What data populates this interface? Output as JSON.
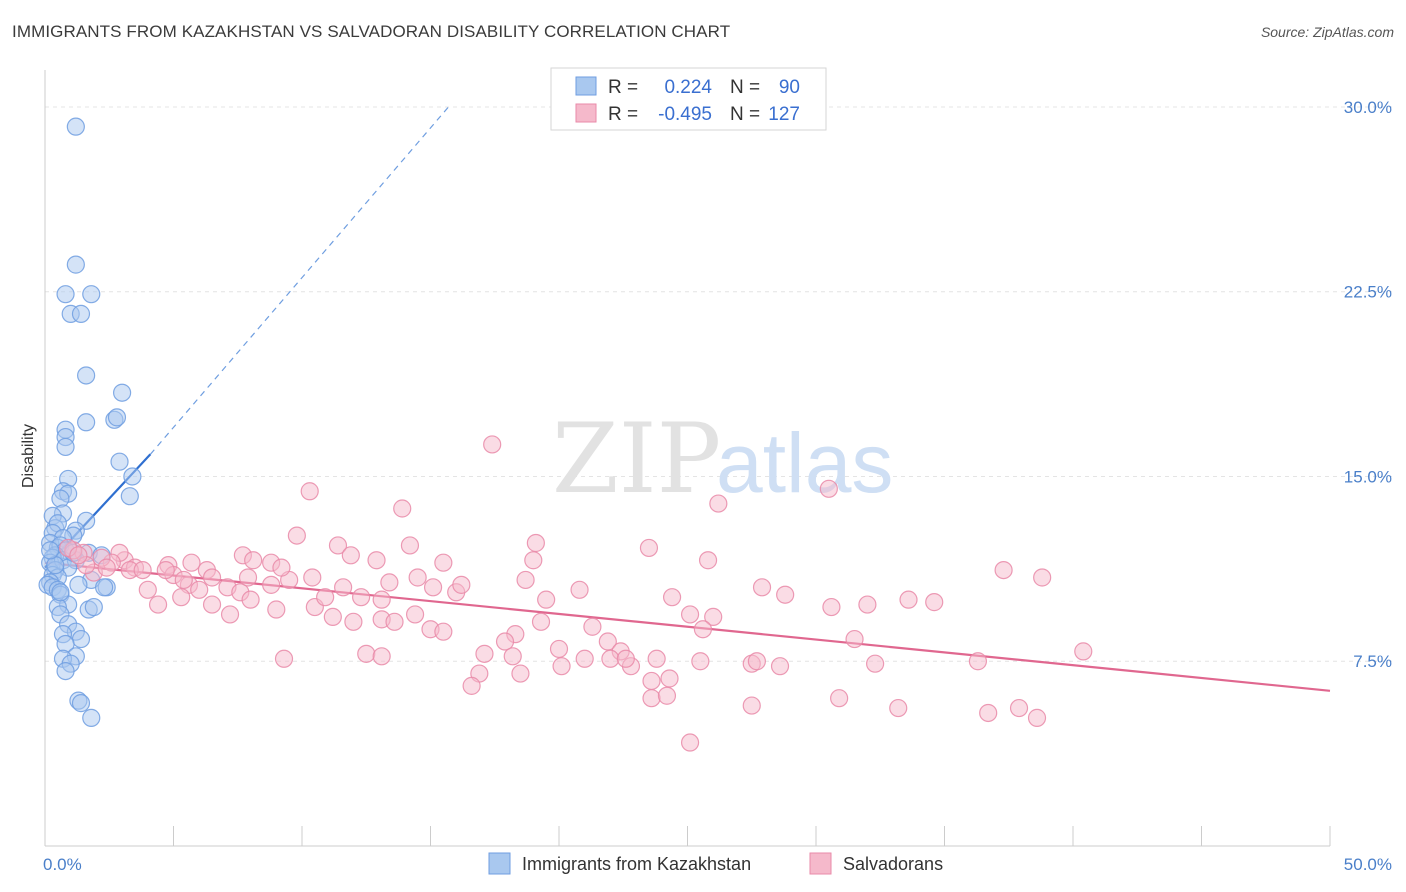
{
  "title": "IMMIGRANTS FROM KAZAKHSTAN VS SALVADORAN DISABILITY CORRELATION CHART",
  "source": "Source: ZipAtlas.com",
  "watermark": {
    "zip": "ZIP",
    "atlas": "atlas"
  },
  "legend_box": {
    "rows": [
      {
        "r_label": "R =",
        "r_value": "0.224",
        "n_label": "N =",
        "n_value": "90",
        "color": "#a9c8ef",
        "stroke": "#6f9ee0"
      },
      {
        "r_label": "R =",
        "r_value": "-0.495",
        "n_label": "N =",
        "n_value": "127",
        "color": "#f5b9cb",
        "stroke": "#e98aa8"
      }
    ]
  },
  "chart_data": {
    "type": "scatter",
    "title": "IMMIGRANTS FROM KAZAKHSTAN VS SALVADORAN DISABILITY CORRELATION CHART",
    "xlabel": "",
    "ylabel": "Disability",
    "xlim": [
      0,
      50
    ],
    "ylim": [
      0,
      31.5
    ],
    "x_tick_labels": [
      "0.0%",
      "50.0%"
    ],
    "y_ticks": [
      7.5,
      15.0,
      22.5,
      30.0
    ],
    "y_tick_labels": [
      "7.5%",
      "15.0%",
      "22.5%",
      "30.0%"
    ],
    "grid": true,
    "legend_position": "top-center",
    "series": [
      {
        "name": "Immigrants from Kazakhstan",
        "color": "#6f9ee0",
        "fill": "#a9c8ef",
        "trend": {
          "x": [
            0,
            4.1
          ],
          "y": [
            11.3,
            15.9
          ],
          "dashed_to": [
            15.7,
            30.0
          ]
        },
        "points": [
          [
            1.2,
            29.2
          ],
          [
            1.2,
            23.6
          ],
          [
            0.8,
            22.4
          ],
          [
            1.8,
            22.4
          ],
          [
            1.0,
            21.6
          ],
          [
            1.4,
            21.6
          ],
          [
            1.6,
            19.1
          ],
          [
            3.0,
            18.4
          ],
          [
            2.7,
            17.3
          ],
          [
            2.8,
            17.4
          ],
          [
            1.6,
            17.2
          ],
          [
            0.8,
            16.9
          ],
          [
            0.8,
            16.6
          ],
          [
            0.8,
            16.2
          ],
          [
            2.9,
            15.6
          ],
          [
            3.4,
            15.0
          ],
          [
            0.9,
            14.9
          ],
          [
            0.7,
            14.4
          ],
          [
            0.9,
            14.3
          ],
          [
            3.3,
            14.2
          ],
          [
            0.6,
            14.1
          ],
          [
            0.7,
            13.5
          ],
          [
            0.3,
            13.4
          ],
          [
            1.6,
            13.2
          ],
          [
            0.4,
            12.9
          ],
          [
            0.5,
            13.1
          ],
          [
            1.2,
            12.8
          ],
          [
            1.1,
            12.6
          ],
          [
            0.3,
            12.7
          ],
          [
            0.7,
            12.5
          ],
          [
            0.2,
            12.3
          ],
          [
            0.5,
            12.1
          ],
          [
            0.6,
            12.2
          ],
          [
            0.8,
            12.0
          ],
          [
            1.7,
            11.9
          ],
          [
            0.4,
            11.8
          ],
          [
            0.3,
            11.7
          ],
          [
            0.2,
            11.5
          ],
          [
            0.7,
            11.6
          ],
          [
            1.2,
            11.6
          ],
          [
            2.2,
            11.8
          ],
          [
            0.9,
            11.3
          ],
          [
            0.4,
            11.2
          ],
          [
            0.3,
            11.0
          ],
          [
            0.5,
            10.9
          ],
          [
            1.8,
            10.8
          ],
          [
            0.2,
            10.7
          ],
          [
            0.1,
            10.6
          ],
          [
            0.3,
            10.5
          ],
          [
            0.5,
            10.4
          ],
          [
            1.3,
            10.6
          ],
          [
            2.4,
            10.5
          ],
          [
            0.6,
            10.2
          ],
          [
            0.9,
            9.8
          ],
          [
            0.5,
            9.7
          ],
          [
            1.7,
            9.6
          ],
          [
            1.9,
            9.7
          ],
          [
            0.6,
            9.4
          ],
          [
            0.9,
            9.0
          ],
          [
            1.2,
            8.7
          ],
          [
            0.7,
            8.6
          ],
          [
            1.4,
            8.4
          ],
          [
            0.8,
            8.2
          ],
          [
            1.2,
            7.7
          ],
          [
            0.7,
            7.6
          ],
          [
            1.0,
            7.4
          ],
          [
            0.8,
            7.1
          ],
          [
            1.3,
            5.9
          ],
          [
            1.4,
            5.8
          ],
          [
            1.8,
            5.2
          ],
          [
            0.6,
            10.3
          ],
          [
            1.1,
            11.9
          ],
          [
            0.4,
            11.4
          ],
          [
            2.3,
            10.5
          ],
          [
            0.2,
            12.0
          ]
        ]
      },
      {
        "name": "Salvadorans",
        "color": "#e98aa8",
        "fill": "#f5b9cb",
        "trend": {
          "x": [
            0,
            50
          ],
          "y": [
            11.5,
            6.3
          ]
        },
        "points": [
          [
            17.4,
            16.3
          ],
          [
            30.5,
            14.5
          ],
          [
            10.3,
            14.4
          ],
          [
            13.9,
            13.7
          ],
          [
            26.2,
            13.9
          ],
          [
            9.8,
            12.6
          ],
          [
            14.2,
            12.2
          ],
          [
            19.1,
            12.3
          ],
          [
            23.5,
            12.1
          ],
          [
            11.4,
            12.2
          ],
          [
            11.9,
            11.8
          ],
          [
            7.7,
            11.8
          ],
          [
            5.7,
            11.5
          ],
          [
            6.3,
            11.2
          ],
          [
            12.9,
            11.6
          ],
          [
            15.5,
            11.5
          ],
          [
            19.0,
            11.6
          ],
          [
            25.8,
            11.6
          ],
          [
            37.3,
            11.2
          ],
          [
            38.8,
            10.9
          ],
          [
            3.1,
            11.6
          ],
          [
            3.5,
            11.3
          ],
          [
            4.8,
            11.4
          ],
          [
            8.1,
            11.6
          ],
          [
            8.8,
            11.5
          ],
          [
            5.0,
            11.0
          ],
          [
            5.6,
            10.6
          ],
          [
            6.5,
            10.9
          ],
          [
            7.1,
            10.5
          ],
          [
            7.6,
            10.3
          ],
          [
            8.8,
            10.6
          ],
          [
            9.5,
            10.8
          ],
          [
            10.4,
            10.9
          ],
          [
            11.6,
            10.5
          ],
          [
            12.3,
            10.1
          ],
          [
            13.1,
            10.0
          ],
          [
            14.5,
            10.9
          ],
          [
            15.1,
            10.5
          ],
          [
            16.0,
            10.3
          ],
          [
            18.7,
            10.8
          ],
          [
            19.5,
            10.0
          ],
          [
            27.9,
            10.5
          ],
          [
            32.0,
            9.8
          ],
          [
            33.6,
            10.0
          ],
          [
            4.0,
            10.4
          ],
          [
            4.4,
            9.8
          ],
          [
            5.3,
            10.1
          ],
          [
            6.5,
            9.8
          ],
          [
            7.2,
            9.4
          ],
          [
            8.0,
            10.0
          ],
          [
            9.0,
            9.6
          ],
          [
            10.5,
            9.7
          ],
          [
            11.2,
            9.3
          ],
          [
            12.0,
            9.1
          ],
          [
            13.1,
            9.2
          ],
          [
            13.6,
            9.1
          ],
          [
            14.4,
            9.4
          ],
          [
            15.0,
            8.8
          ],
          [
            15.5,
            8.7
          ],
          [
            18.3,
            8.6
          ],
          [
            19.3,
            9.1
          ],
          [
            21.3,
            8.9
          ],
          [
            25.1,
            9.4
          ],
          [
            26.0,
            9.3
          ],
          [
            25.6,
            8.8
          ],
          [
            17.9,
            8.3
          ],
          [
            20.0,
            8.0
          ],
          [
            21.9,
            8.3
          ],
          [
            22.4,
            7.9
          ],
          [
            22.0,
            7.6
          ],
          [
            21.0,
            7.6
          ],
          [
            22.8,
            7.3
          ],
          [
            23.8,
            7.6
          ],
          [
            25.5,
            7.5
          ],
          [
            27.5,
            7.4
          ],
          [
            27.7,
            7.5
          ],
          [
            28.6,
            7.3
          ],
          [
            32.3,
            7.4
          ],
          [
            36.3,
            7.5
          ],
          [
            9.3,
            7.6
          ],
          [
            12.5,
            7.8
          ],
          [
            13.1,
            7.7
          ],
          [
            17.1,
            7.8
          ],
          [
            18.2,
            7.7
          ],
          [
            20.1,
            7.3
          ],
          [
            22.6,
            7.6
          ],
          [
            16.9,
            7.0
          ],
          [
            18.5,
            7.0
          ],
          [
            16.6,
            6.5
          ],
          [
            23.6,
            6.7
          ],
          [
            24.3,
            6.8
          ],
          [
            23.6,
            6.0
          ],
          [
            24.2,
            6.1
          ],
          [
            30.9,
            6.0
          ],
          [
            27.5,
            5.7
          ],
          [
            33.2,
            5.6
          ],
          [
            36.7,
            5.4
          ],
          [
            37.9,
            5.6
          ],
          [
            38.6,
            5.2
          ],
          [
            25.1,
            4.2
          ],
          [
            2.9,
            11.9
          ],
          [
            3.3,
            11.2
          ],
          [
            2.6,
            11.5
          ],
          [
            1.9,
            11.1
          ],
          [
            2.2,
            11.7
          ],
          [
            1.5,
            11.9
          ],
          [
            1.1,
            12.0
          ],
          [
            1.6,
            11.4
          ],
          [
            4.7,
            11.2
          ],
          [
            6.0,
            10.4
          ],
          [
            9.2,
            11.3
          ],
          [
            10.9,
            10.1
          ],
          [
            30.6,
            9.7
          ],
          [
            40.4,
            7.9
          ],
          [
            0.9,
            12.1
          ],
          [
            1.3,
            11.8
          ],
          [
            2.4,
            11.3
          ],
          [
            3.8,
            11.2
          ],
          [
            5.4,
            10.8
          ],
          [
            7.9,
            10.9
          ],
          [
            13.4,
            10.7
          ],
          [
            16.2,
            10.6
          ],
          [
            20.8,
            10.4
          ],
          [
            24.4,
            10.1
          ],
          [
            28.8,
            10.2
          ],
          [
            34.6,
            9.9
          ],
          [
            31.5,
            8.4
          ]
        ]
      }
    ]
  },
  "bottom_legend": [
    {
      "label": "Immigrants from Kazakhstan",
      "color": "#a9c8ef",
      "stroke": "#6f9ee0"
    },
    {
      "label": "Salvadorans",
      "color": "#f5b9cb",
      "stroke": "#e98aa8"
    }
  ]
}
